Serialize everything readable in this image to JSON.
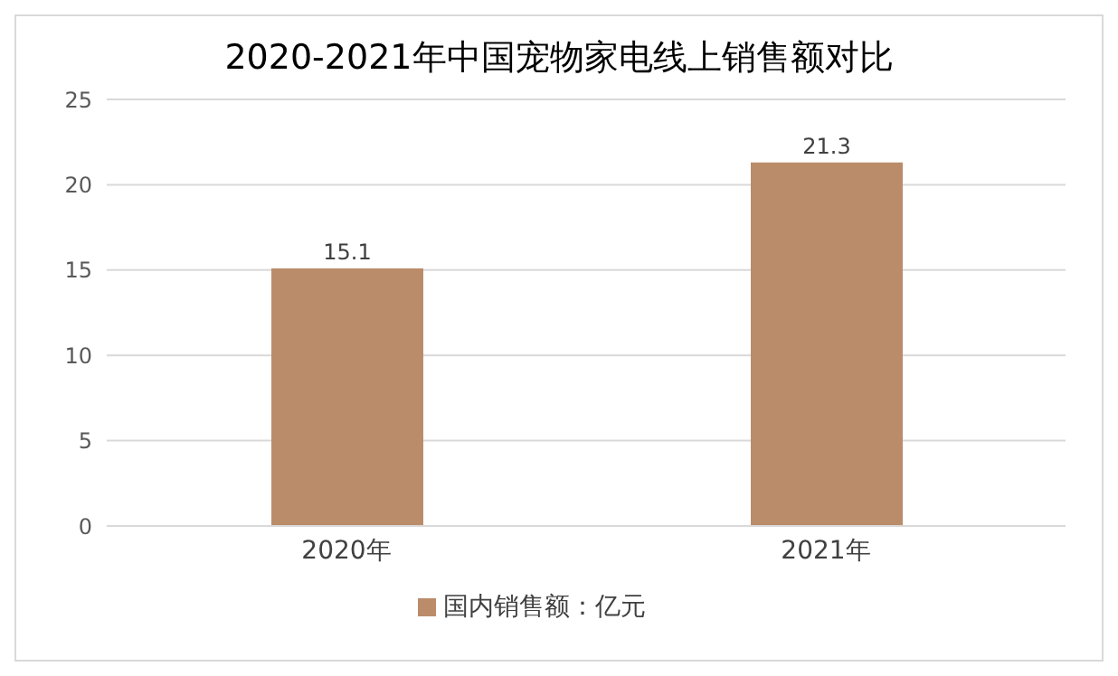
{
  "chart_data": {
    "type": "bar",
    "title": "2020-2021年中国宠物家电线上销售额对比",
    "categories": [
      "2020年",
      "2021年"
    ],
    "series": [
      {
        "name": "国内销售额：亿元",
        "color": "#bb8c6a",
        "values": [
          15.1,
          21.3
        ]
      }
    ],
    "ylim": [
      0,
      25
    ],
    "yticks": [
      0,
      5,
      10,
      15,
      20,
      25
    ],
    "grid": "y",
    "legend": "bottom",
    "data_labels": true
  }
}
